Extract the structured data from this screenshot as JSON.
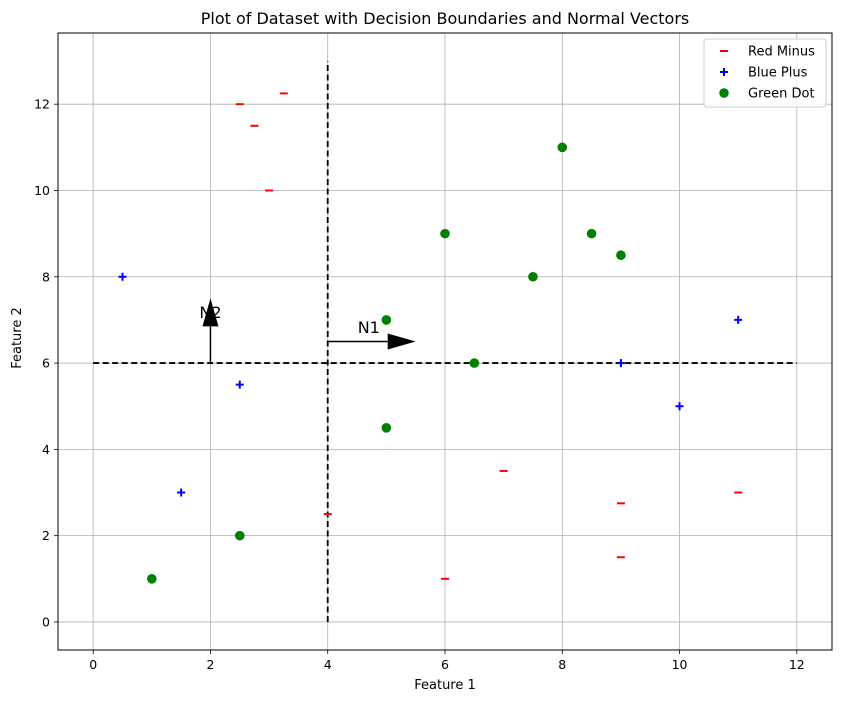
{
  "chart_data": {
    "type": "scatter",
    "title": "Plot of Dataset with Decision Boundaries and Normal Vectors",
    "xlabel": "Feature 1",
    "ylabel": "Feature 2",
    "xlim": [
      -0.6,
      12.6
    ],
    "ylim": [
      -0.65,
      13.65
    ],
    "x_ticks": [
      0,
      2,
      4,
      6,
      8,
      10,
      12
    ],
    "y_ticks": [
      0,
      2,
      4,
      6,
      8,
      10,
      12
    ],
    "grid": true,
    "legend_position": "top-right",
    "series": [
      {
        "name": "Red Minus",
        "marker": "minus",
        "color": "#ff0000",
        "points": [
          [
            2.5,
            12
          ],
          [
            3.25,
            12.25
          ],
          [
            2.75,
            11.5
          ],
          [
            3,
            10
          ],
          [
            4,
            2.5
          ],
          [
            6,
            1
          ],
          [
            7,
            3.5
          ],
          [
            9,
            2.75
          ],
          [
            9,
            1.5
          ],
          [
            11,
            3
          ]
        ]
      },
      {
        "name": "Blue Plus",
        "marker": "plus",
        "color": "#0000ff",
        "points": [
          [
            0.5,
            8
          ],
          [
            2.5,
            5.5
          ],
          [
            1.5,
            3
          ],
          [
            9,
            6
          ],
          [
            10,
            5
          ],
          [
            11,
            7
          ]
        ]
      },
      {
        "name": "Green Dot",
        "marker": "circle",
        "color": "#008000",
        "points": [
          [
            1,
            1
          ],
          [
            2.5,
            2
          ],
          [
            5,
            4.5
          ],
          [
            5,
            7
          ],
          [
            6,
            9
          ],
          [
            6.5,
            6
          ],
          [
            7.5,
            8
          ],
          [
            8,
            11
          ],
          [
            8.5,
            9
          ],
          [
            9,
            8.5
          ]
        ]
      }
    ],
    "boundaries": [
      {
        "from": [
          4,
          0
        ],
        "to": [
          4,
          13
        ],
        "style": "dashed",
        "color": "#000000"
      },
      {
        "from": [
          0,
          6
        ],
        "to": [
          12,
          6
        ],
        "style": "dashed",
        "color": "#000000"
      }
    ],
    "normal_vectors": [
      {
        "label": "N1",
        "from": [
          4,
          6.5
        ],
        "to": [
          5.5,
          6.5
        ],
        "label_at": [
          4.7,
          6.7
        ]
      },
      {
        "label": "N2",
        "from": [
          2,
          6
        ],
        "to": [
          2,
          7.5
        ],
        "label_at": [
          2,
          7.05
        ]
      }
    ]
  }
}
